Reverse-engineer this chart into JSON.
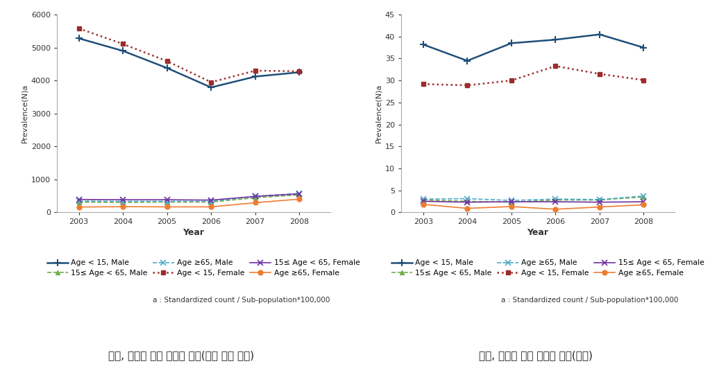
{
  "years": [
    2003,
    2004,
    2005,
    2006,
    2007,
    2008
  ],
  "chart1_title": "성별, 연령에 따른 시간적 분포(입원 또는 외래)",
  "chart2_title": "성별, 연령에 따른 시간적 분포(입원)",
  "ylabel": "Prevalence(N)a",
  "xlabel": "Year",
  "note": "a : Standardized count / Sub-population*100,000",
  "chart1": {
    "ylim": [
      0,
      6000
    ],
    "yticks": [
      0,
      1000,
      2000,
      3000,
      4000,
      5000,
      6000
    ],
    "age_lt15_male": [
      5280,
      4900,
      4380,
      3790,
      4120,
      4250
    ],
    "age_15to65_male": [
      310,
      300,
      310,
      310,
      440,
      530
    ],
    "age_ge65_male": [
      340,
      330,
      330,
      330,
      490,
      570
    ],
    "age_lt15_female": [
      5580,
      5110,
      4590,
      3950,
      4300,
      4280
    ],
    "age_15to65_female": [
      390,
      380,
      380,
      370,
      480,
      560
    ],
    "age_ge65_female": [
      160,
      170,
      165,
      165,
      290,
      400
    ]
  },
  "chart2": {
    "ylim": [
      0,
      45
    ],
    "yticks": [
      0,
      5,
      10,
      15,
      20,
      25,
      30,
      35,
      40,
      45
    ],
    "age_lt15_male": [
      38.2,
      34.5,
      38.5,
      39.3,
      40.5,
      37.5
    ],
    "age_15to65_male": [
      2.8,
      2.5,
      2.3,
      2.8,
      2.8,
      3.5
    ],
    "age_ge65_male": [
      3.0,
      3.1,
      2.7,
      3.0,
      2.9,
      3.7
    ],
    "age_lt15_female": [
      29.2,
      28.9,
      30.0,
      33.3,
      31.5,
      30.1
    ],
    "age_15to65_female": [
      2.5,
      2.3,
      2.4,
      2.4,
      2.3,
      2.4
    ],
    "age_ge65_female": [
      1.8,
      0.9,
      1.3,
      0.7,
      1.2,
      1.7
    ]
  },
  "col_lt15_male": "#1f4e79",
  "col_15to65_male": "#70ad47",
  "col_ge65_male": "#4bacc6",
  "col_lt15_female": "#9c2b2b",
  "col_15to65_female": "#7030a0",
  "col_ge65_female": "#ed7d31",
  "label_lt15_male": "Age < 15, Male",
  "label_15to65_male": "15≤ Age < 65, Male",
  "label_ge65_male": "Age ≥65, Male",
  "label_lt15_female": "Age < 15, Female",
  "label_15to65_female": "15≤ Age < 65, Female",
  "label_ge65_female": "Age ≥65, Female"
}
